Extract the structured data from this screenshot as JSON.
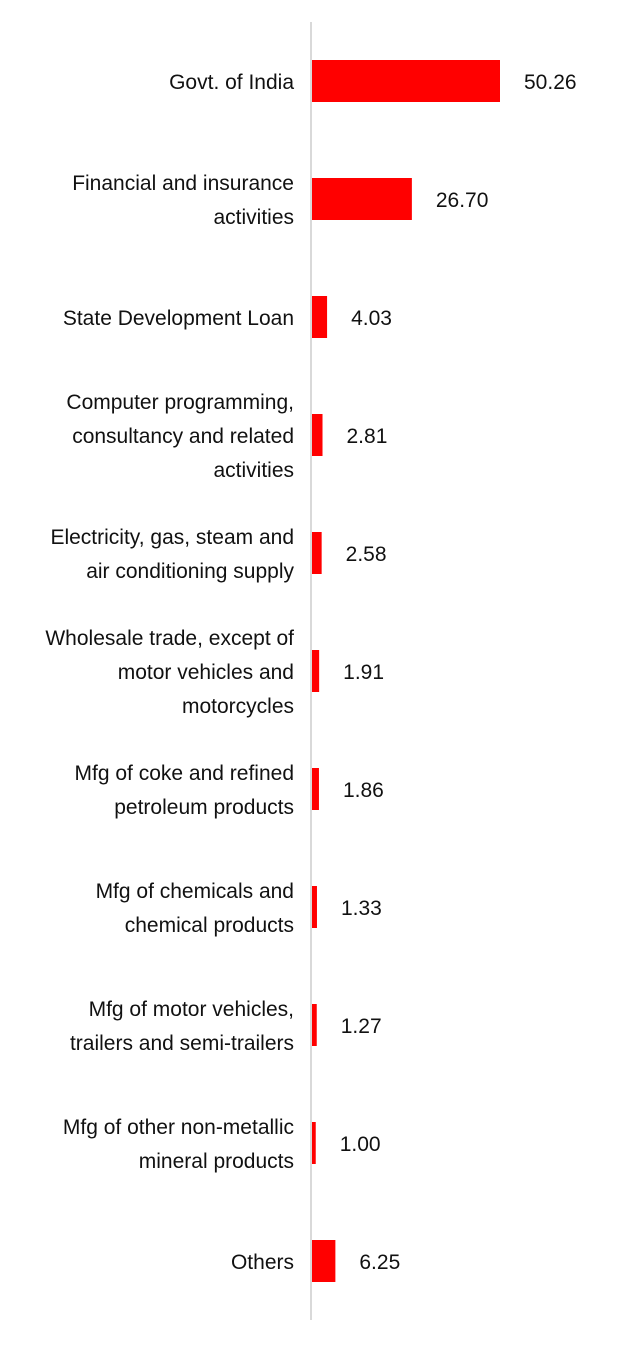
{
  "chart_data": {
    "type": "bar",
    "orientation": "horizontal",
    "title": "",
    "xlabel": "",
    "ylabel": "",
    "xlim": [
      0,
      55
    ],
    "grid": false,
    "legend": "none",
    "bar_color": "#ff0000",
    "axis_color": "#d9d9d9",
    "categories": [
      "Govt. of India",
      "Financial and insurance activities",
      "State Development Loan",
      "Computer programming, consultancy and related activities",
      "Electricity, gas, steam and air conditioning supply",
      "Wholesale trade, except of motor vehicles and motorcycles",
      "Mfg of coke and refined petroleum products",
      "Mfg of chemicals and chemical products",
      "Mfg of motor vehicles, trailers and semi-trailers",
      "Mfg of other non-metallic mineral products",
      "Others"
    ],
    "category_lines": [
      [
        "Govt. of India"
      ],
      [
        "Financial and insurance",
        "activities"
      ],
      [
        "State Development Loan"
      ],
      [
        "Computer programming,",
        "consultancy and related",
        "activities"
      ],
      [
        "Electricity, gas, steam and",
        "air conditioning supply"
      ],
      [
        "Wholesale trade, except of",
        "motor vehicles and",
        "motorcycles"
      ],
      [
        "Mfg of coke and refined",
        "petroleum products"
      ],
      [
        "Mfg of chemicals and",
        "chemical products"
      ],
      [
        "Mfg of motor vehicles,",
        "trailers and semi-trailers"
      ],
      [
        "Mfg of other non-metallic",
        "mineral products"
      ],
      [
        "Others"
      ]
    ],
    "values": [
      50.26,
      26.7,
      4.03,
      2.81,
      2.58,
      1.91,
      1.86,
      1.33,
      1.27,
      1.0,
      6.25
    ],
    "value_labels": [
      "50.26",
      "26.70",
      "4.03",
      "2.81",
      "2.58",
      "1.91",
      "1.86",
      "1.33",
      "1.27",
      "1.00",
      "6.25"
    ]
  }
}
